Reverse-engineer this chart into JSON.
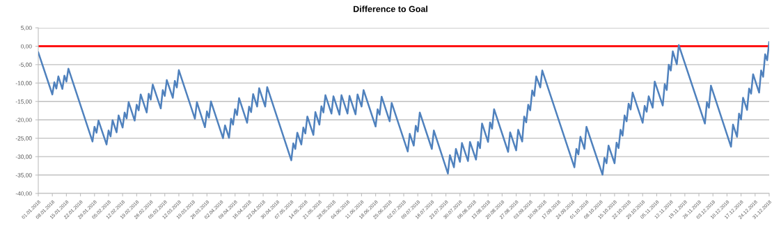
{
  "chart_data": {
    "type": "line",
    "title": "Difference to Goal",
    "x": [
      "2018-01-01",
      "2018-01-08",
      "2018-01-09",
      "2018-01-10",
      "2018-01-11",
      "2018-01-13",
      "2018-01-14",
      "2018-01-15",
      "2018-01-16",
      "2018-01-28",
      "2018-01-29",
      "2018-01-30",
      "2018-01-31",
      "2018-02-04",
      "2018-02-05",
      "2018-02-06",
      "2018-02-07",
      "2018-02-09",
      "2018-02-10",
      "2018-02-12",
      "2018-02-13",
      "2018-02-14",
      "2018-02-15",
      "2018-02-18",
      "2018-02-19",
      "2018-02-20",
      "2018-02-21",
      "2018-02-24",
      "2018-02-25",
      "2018-02-26",
      "2018-02-27",
      "2018-03-03",
      "2018-03-04",
      "2018-03-05",
      "2018-03-06",
      "2018-03-09",
      "2018-03-10",
      "2018-03-11",
      "2018-03-12",
      "2018-03-20",
      "2018-03-21",
      "2018-03-25",
      "2018-03-26",
      "2018-03-27",
      "2018-03-28",
      "2018-04-03",
      "2018-04-04",
      "2018-04-06",
      "2018-04-07",
      "2018-04-08",
      "2018-04-09",
      "2018-04-10",
      "2018-04-11",
      "2018-04-15",
      "2018-04-16",
      "2018-04-17",
      "2018-04-18",
      "2018-04-20",
      "2018-04-21",
      "2018-04-24",
      "2018-04-25",
      "2018-05-07",
      "2018-05-08",
      "2018-05-09",
      "2018-05-10",
      "2018-05-12",
      "2018-05-13",
      "2018-05-14",
      "2018-05-15",
      "2018-05-18",
      "2018-05-19",
      "2018-05-21",
      "2018-05-22",
      "2018-05-23",
      "2018-05-24",
      "2018-05-27",
      "2018-05-28",
      "2018-05-31",
      "2018-06-01",
      "2018-06-04",
      "2018-06-05",
      "2018-06-08",
      "2018-06-09",
      "2018-06-11",
      "2018-06-12",
      "2018-06-18",
      "2018-06-19",
      "2018-06-20",
      "2018-06-21",
      "2018-06-25",
      "2018-06-26",
      "2018-07-04",
      "2018-07-05",
      "2018-07-07",
      "2018-07-08",
      "2018-07-09",
      "2018-07-10",
      "2018-07-16",
      "2018-07-17",
      "2018-07-24",
      "2018-07-25",
      "2018-07-27",
      "2018-07-28",
      "2018-07-30",
      "2018-07-31",
      "2018-08-03",
      "2018-08-04",
      "2018-08-07",
      "2018-08-08",
      "2018-08-09",
      "2018-08-10",
      "2018-08-13",
      "2018-08-14",
      "2018-08-15",
      "2018-08-16",
      "2018-08-23",
      "2018-08-24",
      "2018-08-27",
      "2018-08-28",
      "2018-08-30",
      "2018-08-31",
      "2018-09-01",
      "2018-09-02",
      "2018-09-03",
      "2018-09-04",
      "2018-09-05",
      "2018-09-06",
      "2018-09-08",
      "2018-09-09",
      "2018-09-25",
      "2018-09-26",
      "2018-09-27",
      "2018-09-28",
      "2018-09-30",
      "2018-10-01",
      "2018-10-09",
      "2018-10-10",
      "2018-10-11",
      "2018-10-12",
      "2018-10-15",
      "2018-10-16",
      "2018-10-17",
      "2018-10-18",
      "2018-10-19",
      "2018-10-20",
      "2018-10-21",
      "2018-10-22",
      "2018-10-23",
      "2018-10-24",
      "2018-10-29",
      "2018-10-30",
      "2018-10-31",
      "2018-11-01",
      "2018-11-03",
      "2018-11-04",
      "2018-11-08",
      "2018-11-09",
      "2018-11-10",
      "2018-11-11",
      "2018-11-12",
      "2018-11-13",
      "2018-11-15",
      "2018-11-16",
      "2018-11-29",
      "2018-11-30",
      "2018-12-01",
      "2018-12-02",
      "2018-12-12",
      "2018-12-13",
      "2018-12-15",
      "2018-12-16",
      "2018-12-17",
      "2018-12-18",
      "2018-12-20",
      "2018-12-21",
      "2018-12-22",
      "2018-12-23",
      "2018-12-26",
      "2018-12-27",
      "2018-12-28",
      "2018-12-29",
      "2018-12-30",
      "2018-12-31"
    ],
    "series": [
      {
        "color": "#4f81bd",
        "values": [
          -1.7,
          -13.1,
          -9.8,
          -11.5,
          -8.2,
          -11.6,
          -8.0,
          -9.6,
          -6.1,
          -25.9,
          -21.9,
          -23.5,
          -20.2,
          -26.7,
          -22.9,
          -24.5,
          -20.1,
          -23.4,
          -18.8,
          -22.1,
          -18.0,
          -19.6,
          -15.2,
          -20.2,
          -15.9,
          -17.4,
          -13.1,
          -18.0,
          -12.9,
          -14.5,
          -10.4,
          -16.9,
          -11.9,
          -13.5,
          -9.2,
          -14.0,
          -9.4,
          -11.2,
          -6.5,
          -19.7,
          -15.2,
          -22.0,
          -17.7,
          -19.4,
          -15.0,
          -25.0,
          -21.5,
          -24.9,
          -19.7,
          -21.3,
          -17.1,
          -18.7,
          -14.1,
          -20.8,
          -16.4,
          -17.9,
          -13.0,
          -16.4,
          -11.4,
          -16.4,
          -11.1,
          -31.0,
          -26.4,
          -27.9,
          -23.5,
          -26.7,
          -22.1,
          -23.7,
          -19.1,
          -24.1,
          -17.9,
          -21.3,
          -16.3,
          -18.0,
          -13.3,
          -18.3,
          -13.6,
          -18.6,
          -13.3,
          -18.3,
          -13.5,
          -18.5,
          -13.1,
          -16.4,
          -11.9,
          -21.8,
          -17.1,
          -18.6,
          -13.7,
          -20.4,
          -15.4,
          -28.6,
          -23.8,
          -27.0,
          -21.6,
          -23.2,
          -18.0,
          -27.9,
          -22.9,
          -34.6,
          -29.6,
          -32.9,
          -27.9,
          -31.4,
          -26.3,
          -31.2,
          -26.0,
          -30.8,
          -26.0,
          -27.7,
          -21.0,
          -26.0,
          -20.7,
          -22.4,
          -17.1,
          -28.7,
          -23.4,
          -28.3,
          -22.7,
          -25.9,
          -19.1,
          -20.7,
          -15.9,
          -17.4,
          -12.0,
          -13.5,
          -8.2,
          -11.2,
          -6.6,
          -32.9,
          -27.9,
          -29.4,
          -24.6,
          -27.9,
          -21.9,
          -34.9,
          -30.3,
          -31.8,
          -27.0,
          -31.8,
          -26.2,
          -27.7,
          -22.7,
          -24.3,
          -18.8,
          -20.4,
          -15.6,
          -17.2,
          -12.6,
          -20.8,
          -16.2,
          -17.8,
          -13.6,
          -16.7,
          -9.6,
          -16.1,
          -10.3,
          -11.9,
          -5.0,
          -6.6,
          -1.4,
          -4.9,
          0.3,
          -21.0,
          -15.2,
          -16.7,
          -10.7,
          -27.3,
          -21.3,
          -24.6,
          -18.3,
          -19.9,
          -14.0,
          -17.3,
          -11.5,
          -12.9,
          -7.6,
          -12.6,
          -6.6,
          -8.3,
          -2.2,
          -3.8,
          1.1
        ]
      }
    ],
    "ref_lines": [
      {
        "axis": "y",
        "value": 0,
        "color": "#ff0000"
      }
    ],
    "ylim": [
      -40,
      5
    ],
    "yticks": [
      {
        "value": -40,
        "label": "-40,00"
      },
      {
        "value": -35,
        "label": "-35,00"
      },
      {
        "value": -30,
        "label": "-30,00"
      },
      {
        "value": -25,
        "label": "-25,00"
      },
      {
        "value": -20,
        "label": "-20,00"
      },
      {
        "value": -15,
        "label": "-15,00"
      },
      {
        "value": -10,
        "label": "-10,00"
      },
      {
        "value": -5,
        "label": "-5,00"
      },
      {
        "value": 0,
        "label": "0,00"
      },
      {
        "value": 5,
        "label": "5,00"
      }
    ],
    "xlim": [
      "2018-01-01",
      "2018-12-31"
    ],
    "xticks": [
      {
        "value": "2018-01-01",
        "label": "01.01.2018"
      },
      {
        "value": "2018-01-08",
        "label": "08.01.2018"
      },
      {
        "value": "2018-01-15",
        "label": "15.01.2018"
      },
      {
        "value": "2018-01-22",
        "label": "22.01.2018"
      },
      {
        "value": "2018-01-29",
        "label": "29.01.2018"
      },
      {
        "value": "2018-02-05",
        "label": "05.02.2018"
      },
      {
        "value": "2018-02-12",
        "label": "12.02.2018"
      },
      {
        "value": "2018-02-19",
        "label": "19.02.2018"
      },
      {
        "value": "2018-02-26",
        "label": "26.02.2018"
      },
      {
        "value": "2018-03-05",
        "label": "05.03.2018"
      },
      {
        "value": "2018-03-12",
        "label": "12.03.2018"
      },
      {
        "value": "2018-03-19",
        "label": "19.03.2018"
      },
      {
        "value": "2018-03-26",
        "label": "26.03.2018"
      },
      {
        "value": "2018-04-02",
        "label": "02.04.2018"
      },
      {
        "value": "2018-04-09",
        "label": "09.04.2018"
      },
      {
        "value": "2018-04-16",
        "label": "16.04.2018"
      },
      {
        "value": "2018-04-23",
        "label": "23.04.2018"
      },
      {
        "value": "2018-04-30",
        "label": "30.04.2018"
      },
      {
        "value": "2018-05-07",
        "label": "07.05.2018"
      },
      {
        "value": "2018-05-14",
        "label": "14.05.2018"
      },
      {
        "value": "2018-05-21",
        "label": "21.05.2018"
      },
      {
        "value": "2018-05-28",
        "label": "28.05.2018"
      },
      {
        "value": "2018-06-04",
        "label": "04.06.2018"
      },
      {
        "value": "2018-06-11",
        "label": "11.06.2018"
      },
      {
        "value": "2018-06-18",
        "label": "18.06.2018"
      },
      {
        "value": "2018-06-25",
        "label": "25.06.2018"
      },
      {
        "value": "2018-07-02",
        "label": "02.07.2018"
      },
      {
        "value": "2018-07-09",
        "label": "09.07.2018"
      },
      {
        "value": "2018-07-16",
        "label": "16.07.2018"
      },
      {
        "value": "2018-07-23",
        "label": "23.07.2018"
      },
      {
        "value": "2018-07-30",
        "label": "30.07.2018"
      },
      {
        "value": "2018-08-06",
        "label": "06.08.2018"
      },
      {
        "value": "2018-08-13",
        "label": "13.08.2018"
      },
      {
        "value": "2018-08-20",
        "label": "20.08.2018"
      },
      {
        "value": "2018-08-27",
        "label": "27.08.2018"
      },
      {
        "value": "2018-09-03",
        "label": "03.09.2018"
      },
      {
        "value": "2018-09-10",
        "label": "10.09.2018"
      },
      {
        "value": "2018-09-17",
        "label": "17.09.2018"
      },
      {
        "value": "2018-09-24",
        "label": "24.09.2018"
      },
      {
        "value": "2018-10-01",
        "label": "01.10.2018"
      },
      {
        "value": "2018-10-08",
        "label": "08.10.2018"
      },
      {
        "value": "2018-10-15",
        "label": "15.10.2018"
      },
      {
        "value": "2018-10-22",
        "label": "22.10.2018"
      },
      {
        "value": "2018-10-29",
        "label": "29.10.2018"
      },
      {
        "value": "2018-11-05",
        "label": "05.11.2018"
      },
      {
        "value": "2018-11-12",
        "label": "12.11.2018"
      },
      {
        "value": "2018-11-19",
        "label": "19.11.2018"
      },
      {
        "value": "2018-11-26",
        "label": "26.11.2018"
      },
      {
        "value": "2018-12-03",
        "label": "03.12.2018"
      },
      {
        "value": "2018-12-10",
        "label": "10.12.2018"
      },
      {
        "value": "2018-12-17",
        "label": "17.12.2018"
      },
      {
        "value": "2018-12-24",
        "label": "24.12.2018"
      },
      {
        "value": "2018-12-31",
        "label": "31.12.2018"
      }
    ],
    "grid": "y",
    "legend": false,
    "marker": "none",
    "line_style": "solid"
  }
}
